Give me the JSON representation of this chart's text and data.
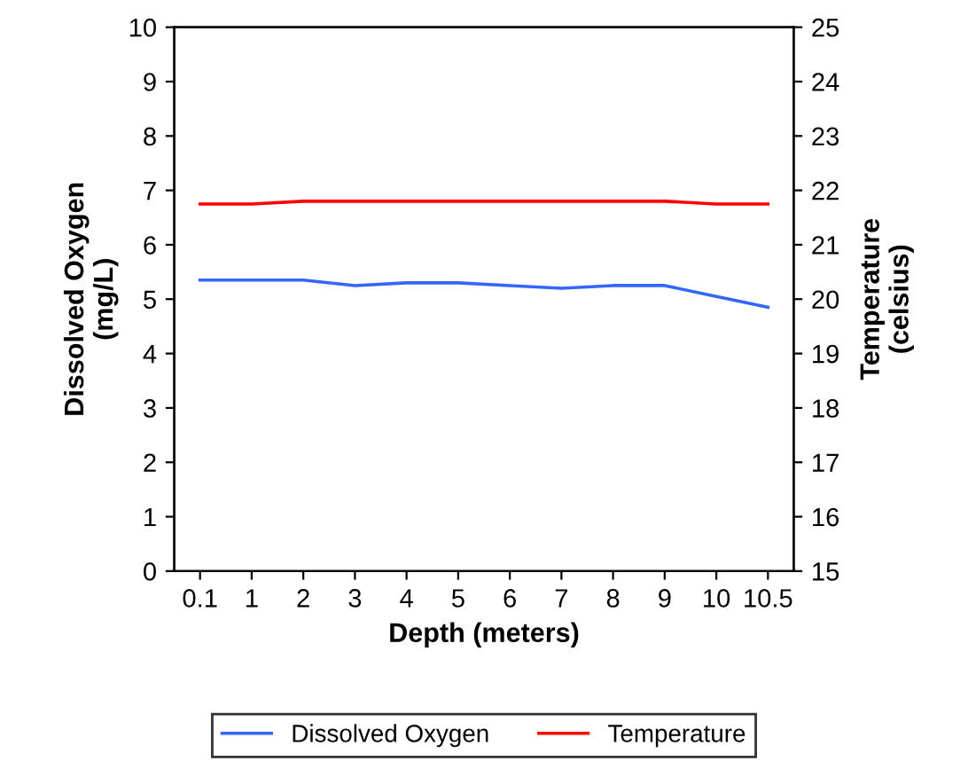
{
  "chart_data": {
    "type": "line",
    "xlabel": "Depth (meters)",
    "ylabel": "Dissolved Oxygen\n(mg/L)",
    "y2label": "Temperature\n(celsius)",
    "categories": [
      "0.1",
      "1",
      "2",
      "3",
      "4",
      "5",
      "6",
      "7",
      "8",
      "9",
      "10",
      "10.5"
    ],
    "series": [
      {
        "name": "Dissolved Oxygen",
        "color": "#3366ff",
        "values": [
          5.35,
          5.35,
          5.35,
          5.25,
          5.3,
          5.3,
          5.25,
          5.2,
          5.25,
          5.25,
          5.05,
          4.85
        ]
      },
      {
        "name": "Temperature",
        "color": "#ff0000",
        "axis": "y2",
        "values": [
          21.75,
          21.75,
          21.8,
          21.8,
          21.8,
          21.8,
          21.8,
          21.8,
          21.8,
          21.8,
          21.75,
          21.75
        ]
      }
    ],
    "ylim": [
      0,
      10
    ],
    "yticks": [
      0,
      1,
      2,
      3,
      4,
      5,
      6,
      7,
      8,
      9,
      10
    ],
    "y2lim": [
      15,
      25
    ],
    "y2ticks": [
      15,
      16,
      17,
      18,
      19,
      20,
      21,
      22,
      23,
      24,
      25
    ],
    "grid": false,
    "legend": "bottom",
    "marker": "none",
    "line_style": "solid"
  }
}
